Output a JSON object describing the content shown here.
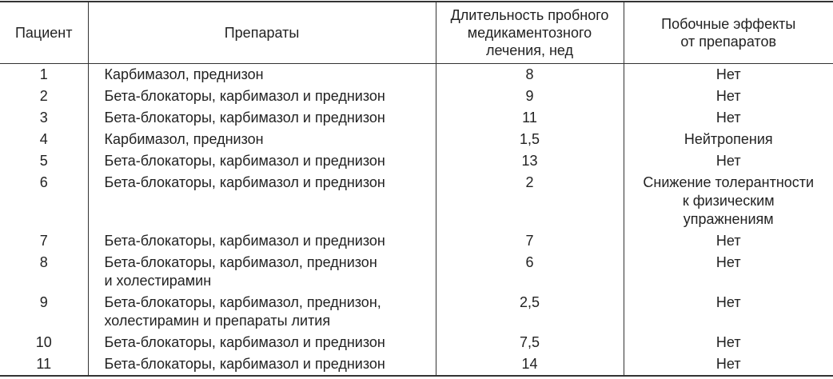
{
  "table": {
    "header": [
      [
        "Пациент"
      ],
      [
        "Препараты"
      ],
      [
        "Длительность пробного",
        "медикаментозного",
        "лечения, нед"
      ],
      [
        "Побочные эффекты",
        "от препаратов"
      ]
    ],
    "rows": [
      [
        [
          "1"
        ],
        [
          "Карбимазол, преднизон"
        ],
        [
          "8"
        ],
        [
          "Нет"
        ]
      ],
      [
        [
          "2"
        ],
        [
          "Бета-блокаторы, карбимазол и преднизон"
        ],
        [
          "9"
        ],
        [
          "Нет"
        ]
      ],
      [
        [
          "3"
        ],
        [
          "Бета-блокаторы, карбимазол и преднизон"
        ],
        [
          "11"
        ],
        [
          "Нет"
        ]
      ],
      [
        [
          "4"
        ],
        [
          "Карбимазол, преднизон"
        ],
        [
          "1,5"
        ],
        [
          "Нейтропения"
        ]
      ],
      [
        [
          "5"
        ],
        [
          "Бета-блокаторы, карбимазол и преднизон"
        ],
        [
          "13"
        ],
        [
          "Нет"
        ]
      ],
      [
        [
          "6"
        ],
        [
          "Бета-блокаторы, карбимазол и преднизон"
        ],
        [
          "2"
        ],
        [
          "Снижение толерантности",
          "к физическим",
          "упражнениям"
        ]
      ],
      [
        [
          "7"
        ],
        [
          "Бета-блокаторы, карбимазол и преднизон"
        ],
        [
          "7"
        ],
        [
          "Нет"
        ]
      ],
      [
        [
          "8"
        ],
        [
          "Бета-блокаторы, карбимазол, преднизон",
          "и холестирамин"
        ],
        [
          "6"
        ],
        [
          "Нет"
        ]
      ],
      [
        [
          "9"
        ],
        [
          "Бета-блокаторы, карбимазол, преднизон,",
          "холестирамин и препараты лития"
        ],
        [
          "2,5"
        ],
        [
          "Нет"
        ]
      ],
      [
        [
          "10"
        ],
        [
          "Бета-блокаторы, карбимазол и преднизон"
        ],
        [
          "7,5"
        ],
        [
          "Нет"
        ]
      ],
      [
        [
          "11"
        ],
        [
          "Бета-блокаторы, карбимазол и преднизон"
        ],
        [
          "14"
        ],
        [
          "Нет"
        ]
      ]
    ]
  }
}
